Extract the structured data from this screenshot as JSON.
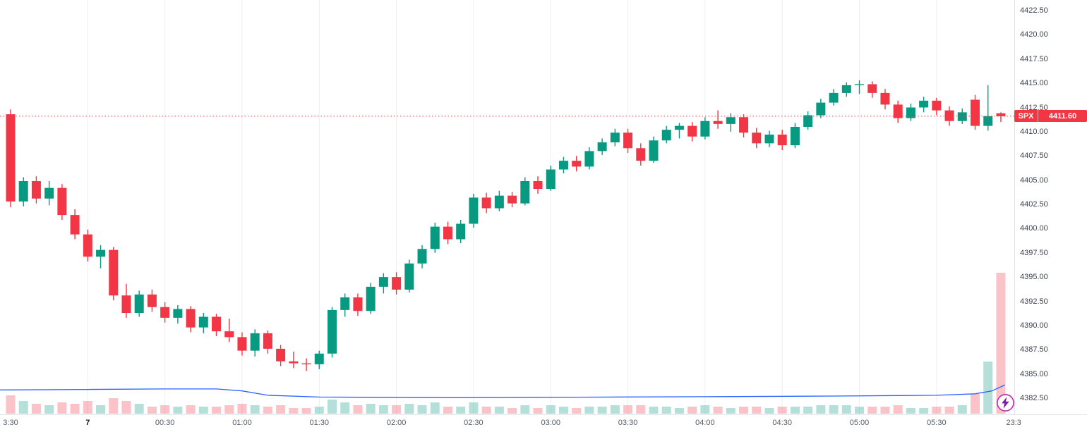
{
  "chart_data": {
    "type": "candlestick",
    "symbol": "SPX",
    "last_price": 4411.6,
    "last_price_str": "4411.60",
    "price_line": {
      "value": 4411.6,
      "style": "dotted"
    },
    "colors": {
      "up": "#089981",
      "down": "#F23645",
      "vol_up": "rgba(8,153,129,0.30)",
      "vol_down": "rgba(242,54,69,0.30)",
      "grid": "#edeff4",
      "overlay_line": "#2962FF",
      "price_line": "#F23645"
    },
    "y_axis": {
      "tick_values": [
        4422.5,
        4420,
        4417.5,
        4415,
        4412.5,
        4410,
        4407.5,
        4405,
        4402.5,
        4400,
        4397.5,
        4395,
        4392.5,
        4390,
        4387.5,
        4385,
        4382.5
      ],
      "tick_labels": [
        "4422.50",
        "4420.00",
        "4417.50",
        "4415.00",
        "4412.50",
        "4410.00",
        "4407.50",
        "4405.00",
        "4402.50",
        "4400.00",
        "4397.50",
        "4395.00",
        "4392.50",
        "4390.00",
        "4387.50",
        "4385.00",
        "4382.50"
      ]
    },
    "x_axis": {
      "labels": [
        {
          "text": "3:30",
          "index": 0
        },
        {
          "text": "7",
          "index": 6,
          "day_marker": true
        },
        {
          "text": "00:30",
          "index": 12
        },
        {
          "text": "01:00",
          "index": 18
        },
        {
          "text": "01:30",
          "index": 24
        },
        {
          "text": "02:00",
          "index": 30
        },
        {
          "text": "02:30",
          "index": 36
        },
        {
          "text": "03:00",
          "index": 42
        },
        {
          "text": "03:30",
          "index": 48
        },
        {
          "text": "04:00",
          "index": 54
        },
        {
          "text": "04:30",
          "index": 60
        },
        {
          "text": "05:00",
          "index": 66
        },
        {
          "text": "05:30",
          "index": 72
        },
        {
          "text": "23:3",
          "index": 78
        }
      ]
    },
    "bar_fields": [
      "time",
      "open",
      "high",
      "low",
      "close",
      "volume"
    ],
    "bars": [
      [
        "23:30",
        4411.8,
        4412.3,
        4402.2,
        4402.8,
        13
      ],
      [
        "23:35",
        4402.8,
        4405.3,
        4402.3,
        4404.9,
        9
      ],
      [
        "23:40",
        4404.9,
        4405.4,
        4402.6,
        4403.1,
        7
      ],
      [
        "23:45",
        4403.1,
        4404.9,
        4402.4,
        4404.2,
        6
      ],
      [
        "23:50",
        4404.2,
        4404.6,
        4400.9,
        4401.4,
        8
      ],
      [
        "23:55",
        4401.4,
        4402.0,
        4398.9,
        4399.4,
        7
      ],
      [
        "00:00",
        4399.4,
        4399.9,
        4396.6,
        4397.1,
        9
      ],
      [
        "00:05",
        4397.1,
        4398.3,
        4395.9,
        4397.8,
        6
      ],
      [
        "00:10",
        4397.8,
        4398.1,
        4392.6,
        4393.1,
        11
      ],
      [
        "00:15",
        4393.1,
        4394.3,
        4390.8,
        4391.3,
        9
      ],
      [
        "00:20",
        4391.3,
        4393.6,
        4390.9,
        4393.2,
        7
      ],
      [
        "00:25",
        4393.2,
        4393.7,
        4391.4,
        4391.9,
        5
      ],
      [
        "00:30",
        4391.9,
        4392.4,
        4390.3,
        4390.8,
        6
      ],
      [
        "00:35",
        4390.8,
        4392.1,
        4390.2,
        4391.7,
        5
      ],
      [
        "00:40",
        4391.7,
        4392.0,
        4389.3,
        4389.8,
        6
      ],
      [
        "00:45",
        4389.8,
        4391.3,
        4389.2,
        4390.9,
        5
      ],
      [
        "00:50",
        4390.9,
        4391.2,
        4388.9,
        4389.4,
        5
      ],
      [
        "00:55",
        4389.4,
        4390.7,
        4388.3,
        4388.8,
        6
      ],
      [
        "01:00",
        4388.8,
        4389.3,
        4386.9,
        4387.4,
        7
      ],
      [
        "01:05",
        4387.4,
        4389.6,
        4386.8,
        4389.2,
        6
      ],
      [
        "01:10",
        4389.2,
        4389.5,
        4387.1,
        4387.6,
        5
      ],
      [
        "01:15",
        4387.6,
        4388.0,
        4385.8,
        4386.3,
        6
      ],
      [
        "01:20",
        4386.3,
        4387.3,
        4385.6,
        4386.1,
        4
      ],
      [
        "01:25",
        4386.1,
        4386.6,
        4385.3,
        4386.0,
        4
      ],
      [
        "01:30",
        4386.0,
        4387.4,
        4385.5,
        4387.1,
        5
      ],
      [
        "01:35",
        4387.1,
        4391.9,
        4386.7,
        4391.6,
        10
      ],
      [
        "01:40",
        4391.6,
        4393.3,
        4390.9,
        4392.9,
        8
      ],
      [
        "01:45",
        4392.9,
        4393.3,
        4391.0,
        4391.5,
        6
      ],
      [
        "01:50",
        4391.5,
        4394.4,
        4391.2,
        4394.0,
        7
      ],
      [
        "01:55",
        4394.0,
        4395.4,
        4393.3,
        4395.0,
        6
      ],
      [
        "02:00",
        4395.0,
        4395.5,
        4393.2,
        4393.7,
        6
      ],
      [
        "02:05",
        4393.7,
        4396.8,
        4393.4,
        4396.4,
        7
      ],
      [
        "02:10",
        4396.4,
        4398.3,
        4395.9,
        4397.9,
        6
      ],
      [
        "02:15",
        4397.9,
        4400.6,
        4397.5,
        4400.2,
        8
      ],
      [
        "02:20",
        4400.2,
        4400.7,
        4398.4,
        4398.9,
        5
      ],
      [
        "02:25",
        4398.9,
        4400.9,
        4398.5,
        4400.5,
        5
      ],
      [
        "02:30",
        4400.5,
        4403.6,
        4400.1,
        4403.2,
        8
      ],
      [
        "02:35",
        4403.2,
        4403.7,
        4401.6,
        4402.1,
        5
      ],
      [
        "02:40",
        4402.1,
        4403.9,
        4401.8,
        4403.4,
        5
      ],
      [
        "02:45",
        4403.4,
        4403.8,
        4402.2,
        4402.6,
        4
      ],
      [
        "02:50",
        4402.6,
        4405.3,
        4402.4,
        4404.9,
        6
      ],
      [
        "02:55",
        4404.9,
        4405.4,
        4403.6,
        4404.1,
        4
      ],
      [
        "03:00",
        4404.1,
        4406.5,
        4403.9,
        4406.1,
        6
      ],
      [
        "03:05",
        4406.1,
        4407.4,
        4405.7,
        4407.0,
        5
      ],
      [
        "03:10",
        4407.0,
        4407.5,
        4405.9,
        4406.4,
        4
      ],
      [
        "03:15",
        4406.4,
        4408.4,
        4406.1,
        4408.0,
        5
      ],
      [
        "03:20",
        4408.0,
        4409.3,
        4407.6,
        4408.9,
        5
      ],
      [
        "03:25",
        4408.9,
        4410.3,
        4408.5,
        4409.9,
        6
      ],
      [
        "03:30",
        4409.9,
        4410.3,
        4407.8,
        4408.3,
        6
      ],
      [
        "03:35",
        4408.3,
        4408.8,
        4406.5,
        4407.0,
        6
      ],
      [
        "03:40",
        4407.0,
        4409.5,
        4406.8,
        4409.1,
        5
      ],
      [
        "03:45",
        4409.1,
        4410.6,
        4408.8,
        4410.2,
        5
      ],
      [
        "03:50",
        4410.2,
        4410.9,
        4409.3,
        4410.6,
        4
      ],
      [
        "03:55",
        4410.6,
        4411.0,
        4409.0,
        4409.5,
        5
      ],
      [
        "04:00",
        4409.5,
        4411.5,
        4409.2,
        4411.1,
        6
      ],
      [
        "04:05",
        4411.1,
        4412.2,
        4410.3,
        4410.8,
        5
      ],
      [
        "04:10",
        4410.8,
        4411.9,
        4410.0,
        4411.5,
        4
      ],
      [
        "04:15",
        4411.5,
        4411.8,
        4409.4,
        4409.9,
        5
      ],
      [
        "04:20",
        4409.9,
        4410.4,
        4408.3,
        4408.8,
        5
      ],
      [
        "04:25",
        4408.8,
        4410.1,
        4408.4,
        4409.7,
        4
      ],
      [
        "04:30",
        4409.7,
        4410.2,
        4408.1,
        4408.6,
        5
      ],
      [
        "04:35",
        4408.6,
        4410.9,
        4408.3,
        4410.5,
        5
      ],
      [
        "04:40",
        4410.5,
        4412.1,
        4410.2,
        4411.7,
        5
      ],
      [
        "04:45",
        4411.7,
        4413.4,
        4411.4,
        4413.0,
        6
      ],
      [
        "04:50",
        4413.0,
        4414.4,
        4412.7,
        4414.0,
        6
      ],
      [
        "04:55",
        4414.0,
        4415.1,
        4413.6,
        4414.8,
        6
      ],
      [
        "05:00",
        4414.8,
        4415.3,
        4413.9,
        4414.9,
        5
      ],
      [
        "05:05",
        4414.9,
        4415.2,
        4413.5,
        4414.0,
        5
      ],
      [
        "05:10",
        4414.0,
        4414.4,
        4412.3,
        4412.8,
        5
      ],
      [
        "05:15",
        4412.8,
        4413.2,
        4410.9,
        4411.4,
        6
      ],
      [
        "05:20",
        4411.4,
        4412.9,
        4411.1,
        4412.5,
        4
      ],
      [
        "05:25",
        4412.5,
        4413.6,
        4412.0,
        4413.2,
        4
      ],
      [
        "05:30",
        4413.2,
        4413.5,
        4411.7,
        4412.2,
        5
      ],
      [
        "05:35",
        4412.2,
        4412.6,
        4410.6,
        4411.1,
        5
      ],
      [
        "05:40",
        4411.1,
        4412.4,
        4410.8,
        4412.0,
        6
      ],
      [
        "05:45",
        4413.3,
        4413.8,
        4410.2,
        4410.6,
        14
      ],
      [
        "05:50",
        4410.6,
        4414.8,
        4410.1,
        4411.6,
        37
      ],
      [
        "05:55",
        4411.9,
        4412.0,
        4411.0,
        4411.6,
        100
      ]
    ],
    "overlay_line": {
      "points": [
        [
          -0.8,
          4383.35
        ],
        [
          6,
          4383.4
        ],
        [
          12,
          4383.45
        ],
        [
          16,
          4383.45
        ],
        [
          18,
          4383.25
        ],
        [
          20,
          4382.8
        ],
        [
          24,
          4382.62
        ],
        [
          34,
          4382.55
        ],
        [
          44,
          4382.6
        ],
        [
          54,
          4382.65
        ],
        [
          64,
          4382.72
        ],
        [
          72,
          4382.8
        ],
        [
          75,
          4382.95
        ],
        [
          76.3,
          4383.25
        ],
        [
          77.3,
          4383.85
        ]
      ]
    }
  },
  "widgets": {
    "lightning_ring_color": "#c22fb3",
    "lightning_bolt_color": "#7a1fa2"
  }
}
